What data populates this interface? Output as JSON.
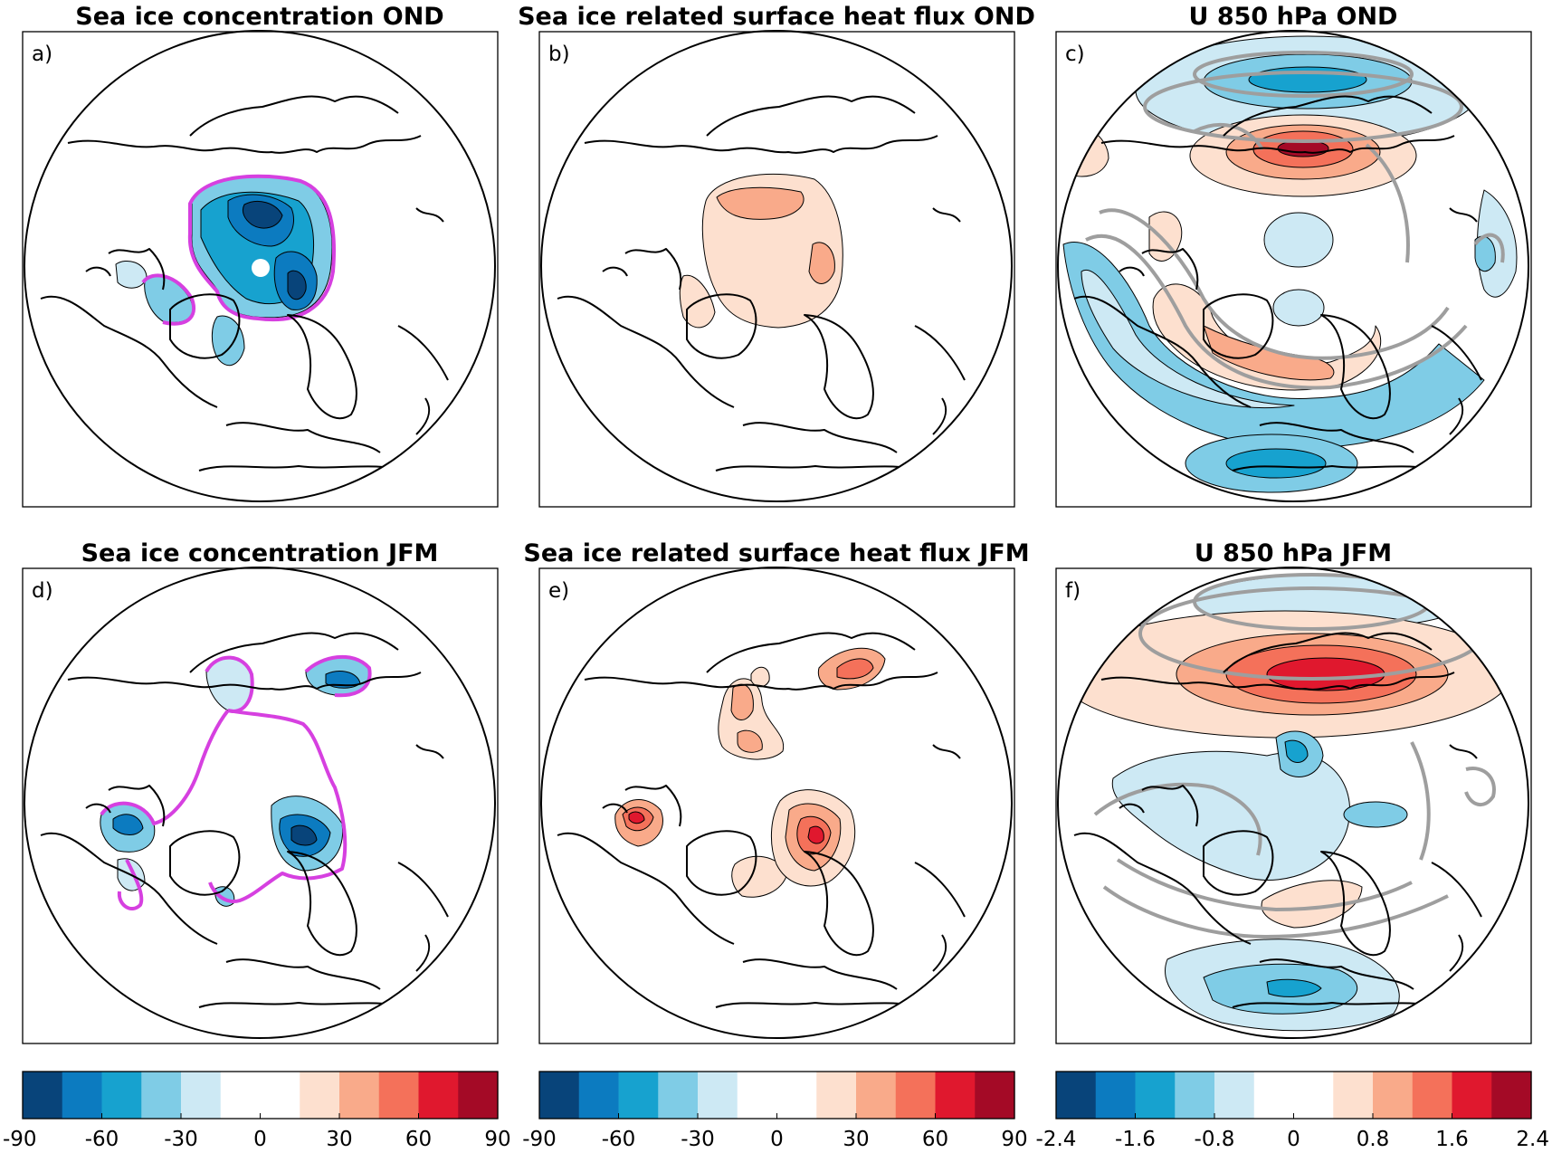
{
  "panels": [
    {
      "title": "Sea ice concentration OND",
      "label": "a)"
    },
    {
      "title": "Sea ice related surface heat flux OND",
      "label": "b)"
    },
    {
      "title": "U 850 hPa OND",
      "label": "c)"
    },
    {
      "title": "Sea ice concentration JFM",
      "label": "d)"
    },
    {
      "title": "Sea ice related surface heat flux JFM",
      "label": "e)"
    },
    {
      "title": "U 850 hPa JFM",
      "label": "f)"
    }
  ],
  "colorbars": [
    {
      "ticks": [
        "-90",
        "-60",
        "-30",
        "0",
        "30",
        "60",
        "90"
      ]
    },
    {
      "ticks": [
        "-90",
        "-60",
        "-30",
        "0",
        "30",
        "60",
        "90"
      ]
    },
    {
      "ticks": [
        "-2.4",
        "-1.6",
        "-0.8",
        "0",
        "0.8",
        "1.6",
        "2.4"
      ]
    }
  ],
  "colors": [
    "#08447a",
    "#0c7bc0",
    "#17a2cf",
    "#7fcce6",
    "#cde9f4",
    "#ffffff",
    "#ffffff",
    "#fde0cf",
    "#f9aa8a",
    "#f4715a",
    "#e0182e",
    "#a40a26"
  ]
}
